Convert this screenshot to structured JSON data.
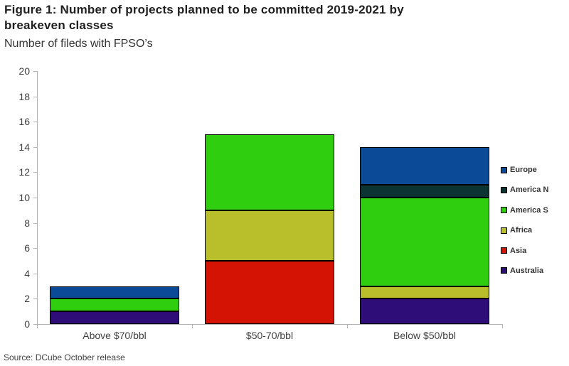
{
  "header": {
    "title_lines": [
      "Figure 1: Number of projects planned to be committed 2019-2021 by",
      "breakeven classes"
    ],
    "subtitle": "Number of fileds with FPSO’s"
  },
  "footer": {
    "source": "Source: DCube October release"
  },
  "colors": {
    "axis": "#b3b3b3",
    "title_text": "#1f1f1f",
    "label_text": "#404040",
    "segment_border": "#000000",
    "background": "#ffffff"
  },
  "chart_data": {
    "type": "bar",
    "stacked": true,
    "title": "Figure 1: Number of projects planned to be committed 2019-2021 by breakeven classes",
    "subtitle": "Number of fileds with FPSO’s",
    "xlabel": "",
    "ylabel": "Number of fileds with FPSO’s",
    "categories": [
      "Above $70/bbl",
      "$50-70/bbl",
      "Below $50/bbl"
    ],
    "series": [
      {
        "name": "Australia",
        "color": "#2e0d78",
        "values": [
          1,
          0,
          2
        ]
      },
      {
        "name": "Asia",
        "color": "#d51304",
        "values": [
          0,
          5,
          0
        ]
      },
      {
        "name": "Africa",
        "color": "#b8bf2a",
        "values": [
          0,
          4,
          1
        ]
      },
      {
        "name": "America S",
        "color": "#2fce0f",
        "values": [
          1,
          6,
          7
        ]
      },
      {
        "name": "America N",
        "color": "#0c3432",
        "values": [
          0,
          0,
          1
        ]
      },
      {
        "name": "Europe",
        "color": "#0b4a97",
        "values": [
          1,
          0,
          3
        ]
      }
    ],
    "totals": [
      3,
      15,
      14
    ],
    "ylim": [
      0,
      20
    ],
    "ytick_step": 2,
    "grid": false,
    "legend_position": "right",
    "legend_order_top_to_bottom": [
      "Europe",
      "America N",
      "America S",
      "Africa",
      "Asia",
      "Australia"
    ]
  }
}
